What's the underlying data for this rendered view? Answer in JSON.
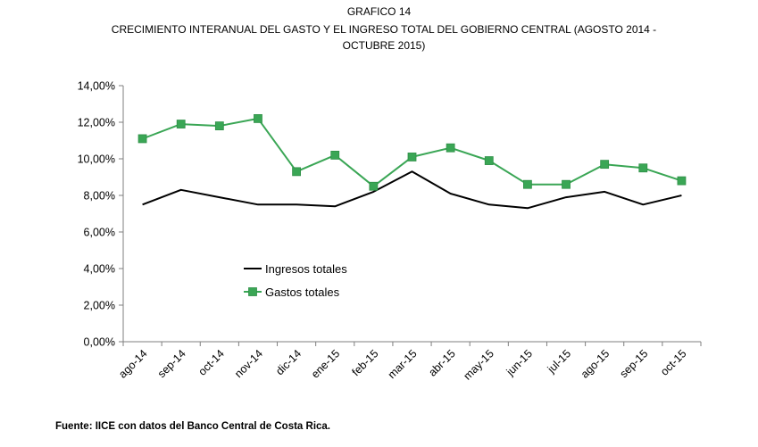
{
  "figure": {
    "title": "GRAFICO 14",
    "subtitle": "CRECIMIENTO INTERANUAL DEL GASTO Y EL INGRESO TOTAL DEL GOBIERNO CENTRAL (AGOSTO 2014 - OCTUBRE 2015)",
    "source": "Fuente: IICE con datos del Banco Central de Costa Rica."
  },
  "chart_data": {
    "type": "line",
    "title": "CRECIMIENTO INTERANUAL DEL GASTO Y EL INGRESO TOTAL DEL GOBIERNO CENTRAL (AGOSTO 2014 - OCTUBRE 2015)",
    "xlabel": "",
    "ylabel": "",
    "categories": [
      "ago-14",
      "sep-14",
      "oct-14",
      "nov-14",
      "dic-14",
      "ene-15",
      "feb-15",
      "mar-15",
      "abr-15",
      "may-15",
      "jun-15",
      "jul-15",
      "ago-15",
      "sep-15",
      "oct-15"
    ],
    "ylim": [
      0,
      14
    ],
    "yticks": [
      0,
      2,
      4,
      6,
      8,
      10,
      12,
      14
    ],
    "ytick_labels": [
      "0,00%",
      "2,00%",
      "4,00%",
      "6,00%",
      "8,00%",
      "10,00%",
      "12,00%",
      "14,00%"
    ],
    "grid": false,
    "legend_position": "center-left",
    "series": [
      {
        "name": "Ingresos totales",
        "color": "#000000",
        "marker": "none",
        "values": [
          7.5,
          8.3,
          7.9,
          7.5,
          7.5,
          7.4,
          8.2,
          9.3,
          8.1,
          7.5,
          7.3,
          7.9,
          8.2,
          7.5,
          8.0
        ]
      },
      {
        "name": "Gastos totales",
        "color": "#3aa655",
        "marker": "square",
        "values": [
          11.1,
          11.9,
          11.8,
          12.2,
          9.3,
          10.2,
          8.5,
          10.1,
          10.6,
          9.9,
          8.6,
          8.6,
          9.7,
          9.5,
          8.8
        ]
      }
    ]
  }
}
